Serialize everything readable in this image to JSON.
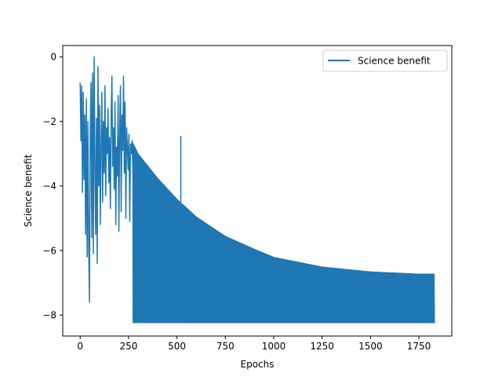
{
  "chart_data": {
    "type": "line",
    "title": "",
    "xlabel": "Epochs",
    "ylabel": "Science benefit",
    "xlim": [
      -90,
      1920
    ],
    "ylim": [
      -8.65,
      0.35
    ],
    "x_ticks": [
      0,
      250,
      500,
      750,
      1000,
      1250,
      1500,
      1750
    ],
    "y_ticks": [
      0,
      -2,
      -4,
      -6,
      -8
    ],
    "grid": false,
    "legend": {
      "position": "top-right",
      "entries": [
        "Science benefit"
      ]
    },
    "series": [
      {
        "name": "Science benefit",
        "color": "#1f77b4",
        "early_phase": {
          "x": [
            0,
            4,
            8,
            12,
            16,
            20,
            24,
            28,
            32,
            36,
            40,
            44,
            48,
            52,
            56,
            60,
            64,
            68,
            72,
            76,
            80,
            84,
            88,
            92,
            96,
            100,
            104,
            108,
            112,
            116,
            120,
            124,
            128,
            132,
            136,
            140,
            144,
            148,
            152,
            156,
            160,
            164,
            168,
            172,
            176,
            180,
            184,
            188,
            192,
            196,
            200,
            204,
            208,
            212,
            216,
            220,
            224,
            228,
            232,
            236,
            240,
            244,
            248,
            252,
            256,
            260,
            264,
            268,
            272
          ],
          "y": [
            -0.8,
            -2.6,
            -0.9,
            -4.2,
            -1.1,
            -3.8,
            -1.8,
            -5.5,
            -1.3,
            -6.2,
            -2.0,
            -5.8,
            -7.6,
            -2.4,
            -0.8,
            -5.6,
            -0.5,
            -6.1,
            0.0,
            -3.3,
            -5.5,
            -1.9,
            -6.4,
            -0.3,
            -4.0,
            -1.5,
            -5.2,
            -2.8,
            -1.1,
            -4.5,
            -2.0,
            -3.6,
            -0.9,
            -4.3,
            -2.2,
            -3.0,
            -1.6,
            -3.9,
            -2.5,
            -4.7,
            -1.9,
            -0.6,
            -3.4,
            -2.2,
            -4.1,
            -1.4,
            -5.2,
            -2.8,
            -3.7,
            -1.2,
            -5.4,
            -2.3,
            -0.9,
            -4.8,
            -1.8,
            -2.9,
            -0.6,
            -3.6,
            -1.4,
            -5.0,
            -2.2,
            -2.8,
            -3.5,
            -2.4,
            -5.1,
            -2.7,
            -3.0,
            -2.6,
            -3.4
          ]
        },
        "oscillation_phase": {
          "x_range": [
            272,
            1830
          ],
          "upper_envelope": {
            "x": [
              272,
              300,
              400,
              500,
              600,
              750,
              900,
              1000,
              1250,
              1500,
              1750,
              1830
            ],
            "y": [
              -2.65,
              -3.0,
              -3.75,
              -4.4,
              -4.95,
              -5.55,
              -5.95,
              -6.2,
              -6.5,
              -6.65,
              -6.72,
              -6.72
            ]
          },
          "lower_bound": -8.25,
          "spike": {
            "x": 520,
            "y": -2.45
          }
        }
      }
    ]
  }
}
